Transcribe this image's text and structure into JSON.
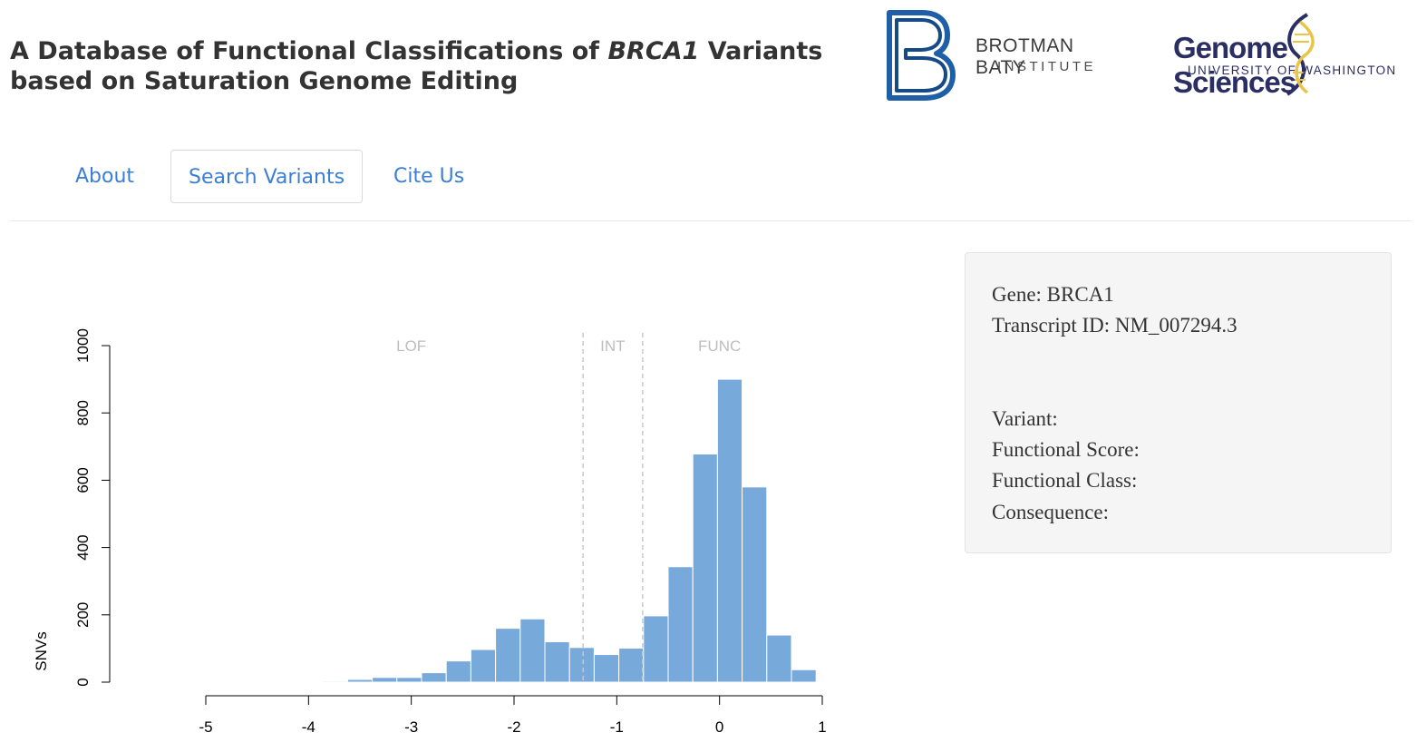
{
  "header": {
    "title_part1": "A Database of Functional Classifications of ",
    "title_gene": "BRCA1",
    "title_part2": " Variants",
    "title_line2": "based on Saturation Genome Editing"
  },
  "logos": {
    "bbi_line1": "BROTMAN BATY",
    "bbi_line2": "INSTITUTE",
    "gs_line1": "Genome Sciences",
    "gs_line2": "UNIVERSITY OF WASHINGTON",
    "bbi_color": "#1e5fa8",
    "gs_color": "#2b2e63"
  },
  "nav": {
    "tabs": [
      {
        "label": "About",
        "active": false
      },
      {
        "label": "Search Variants",
        "active": true
      },
      {
        "label": "Cite Us",
        "active": false
      }
    ]
  },
  "chart_data": {
    "type": "bar",
    "ylabel": "SNVs",
    "xlabel": "",
    "xlim": [
      -5,
      1
    ],
    "ylim": [
      0,
      1000
    ],
    "x_ticks": [
      "-5",
      "-4",
      "-3",
      "-2",
      "-1",
      "0",
      "1"
    ],
    "y_ticks": [
      "0",
      "200",
      "400",
      "600",
      "800",
      "1000"
    ],
    "bin_width": 0.24,
    "bin_start": -4.1,
    "values": [
      0,
      3,
      8,
      14,
      14,
      28,
      63,
      97,
      160,
      188,
      120,
      103,
      82,
      101,
      197,
      343,
      678,
      900,
      580,
      140,
      37,
      2
    ],
    "bar_color": "#77a9da",
    "thresholds": [
      -1.328,
      -0.748
    ],
    "regions": [
      {
        "label": "LOF",
        "center": -3.0
      },
      {
        "label": "INT",
        "center": -1.04
      },
      {
        "label": "FUNC",
        "center": 0.0
      }
    ]
  },
  "info": {
    "gene": "Gene: BRCA1",
    "transcript": "Transcript ID: NM_007294.3",
    "variant": "Variant:",
    "functional_score": "Functional Score:",
    "functional_class": "Functional Class:",
    "consequence": "Consequence:"
  }
}
